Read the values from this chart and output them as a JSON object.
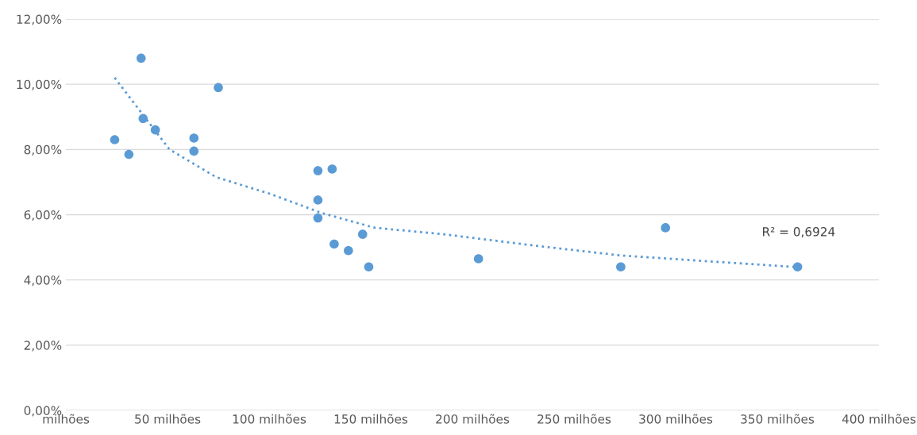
{
  "chart_data": {
    "type": "scatter",
    "xlim": [
      0,
      400
    ],
    "ylim": [
      0,
      12
    ],
    "xticks": [
      {
        "value": 0,
        "label": "milhões"
      },
      {
        "value": 50,
        "label": "50 milhões"
      },
      {
        "value": 100,
        "label": "100 milhões"
      },
      {
        "value": 150,
        "label": "150 milhões"
      },
      {
        "value": 200,
        "label": "200 milhões"
      },
      {
        "value": 250,
        "label": "250 milhões"
      },
      {
        "value": 300,
        "label": "300 milhões"
      },
      {
        "value": 350,
        "label": "350 milhões"
      },
      {
        "value": 400,
        "label": "400 milhões"
      }
    ],
    "yticks": [
      {
        "value": 0,
        "label": "0,00%"
      },
      {
        "value": 2,
        "label": "2,00%"
      },
      {
        "value": 4,
        "label": "4,00%"
      },
      {
        "value": 6,
        "label": "6,00%"
      },
      {
        "value": 8,
        "label": "8,00%"
      },
      {
        "value": 10,
        "label": "10,00%"
      },
      {
        "value": 12,
        "label": "12,00%"
      }
    ],
    "grid": "y",
    "marker": "circle",
    "legend": false,
    "series": [
      {
        "color": "#5b9bd5",
        "x": [
          24,
          31,
          37,
          38,
          44,
          63,
          63,
          75,
          124,
          131,
          124,
          124,
          132,
          139,
          146,
          149,
          203,
          273,
          295,
          360
        ],
        "values": [
          8.3,
          7.85,
          10.8,
          8.95,
          8.6,
          8.35,
          7.95,
          9.9,
          7.35,
          7.4,
          6.45,
          5.9,
          5.1,
          4.9,
          5.4,
          4.4,
          4.65,
          4.4,
          5.6,
          4.4
        ]
      },
      {
        "type": "line",
        "color": "#5b9bd5",
        "line_style": "dotted",
        "marker": "none",
        "x": [
          24,
          51,
          74,
          100,
          126,
          152,
          186,
          231,
          273,
          358
        ],
        "values": [
          10.2,
          8.0,
          7.15,
          6.65,
          6.05,
          5.6,
          5.4,
          5.05,
          4.75,
          4.4
        ]
      }
    ],
    "annotations": [
      "R² = 0,6924"
    ]
  }
}
